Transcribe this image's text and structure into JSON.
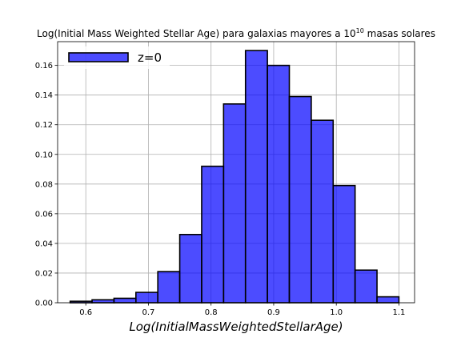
{
  "chart_data": {
    "type": "bar",
    "title": "Log(Initial Mass Weighted Stellar Age) para galaxias mayores a 10",
    "title_superscript": "10",
    "title_suffix": " masas solares",
    "xlabel": "Log(InitialMassWeightedStellarAge)",
    "ylabel": "",
    "legend": {
      "label": "z=0",
      "position": "top-left"
    },
    "grid": true,
    "bar_color": "#0000ff",
    "edge_color": "#000000",
    "xlim": [
      0.555,
      1.125
    ],
    "ylim": [
      0,
      0.176
    ],
    "x_ticks": [
      {
        "value": 0.6,
        "label": "0.6"
      },
      {
        "value": 0.7,
        "label": "0.7"
      },
      {
        "value": 0.8,
        "label": "0.8"
      },
      {
        "value": 0.9,
        "label": "0.9"
      },
      {
        "value": 1.0,
        "label": "1.0"
      },
      {
        "value": 1.1,
        "label": "1.1"
      }
    ],
    "y_ticks": [
      {
        "value": 0.0,
        "label": "0.00"
      },
      {
        "value": 0.02,
        "label": "0.02"
      },
      {
        "value": 0.04,
        "label": "0.04"
      },
      {
        "value": 0.06,
        "label": "0.06"
      },
      {
        "value": 0.08,
        "label": "0.08"
      },
      {
        "value": 0.1,
        "label": "0.10"
      },
      {
        "value": 0.12,
        "label": "0.12"
      },
      {
        "value": 0.14,
        "label": "0.14"
      },
      {
        "value": 0.16,
        "label": "0.16"
      }
    ],
    "bins": [
      {
        "x0": 0.575,
        "x1": 0.61,
        "value": 0.001
      },
      {
        "x0": 0.61,
        "x1": 0.645,
        "value": 0.002
      },
      {
        "x0": 0.645,
        "x1": 0.68,
        "value": 0.003
      },
      {
        "x0": 0.68,
        "x1": 0.715,
        "value": 0.007
      },
      {
        "x0": 0.715,
        "x1": 0.75,
        "value": 0.021
      },
      {
        "x0": 0.75,
        "x1": 0.785,
        "value": 0.046
      },
      {
        "x0": 0.785,
        "x1": 0.82,
        "value": 0.092
      },
      {
        "x0": 0.82,
        "x1": 0.855,
        "value": 0.134
      },
      {
        "x0": 0.855,
        "x1": 0.89,
        "value": 0.17
      },
      {
        "x0": 0.89,
        "x1": 0.925,
        "value": 0.16
      },
      {
        "x0": 0.925,
        "x1": 0.96,
        "value": 0.139
      },
      {
        "x0": 0.96,
        "x1": 0.995,
        "value": 0.123
      },
      {
        "x0": 0.995,
        "x1": 1.03,
        "value": 0.079
      },
      {
        "x0": 1.03,
        "x1": 1.065,
        "value": 0.022
      },
      {
        "x0": 1.065,
        "x1": 1.1,
        "value": 0.004
      }
    ]
  }
}
